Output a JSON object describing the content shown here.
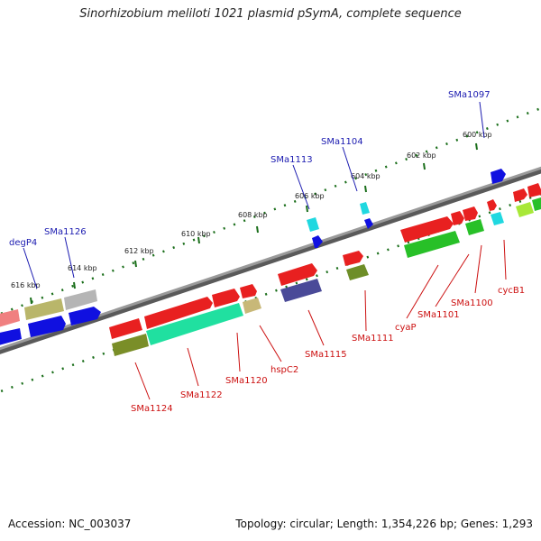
{
  "title": "Sinorhizobium meliloti 1021 plasmid pSymA, complete sequence",
  "footer": {
    "accession": "Accession: NC_003037",
    "summary": "Topology: circular; Length: 1,354,226 bp; Genes: 1,293"
  },
  "ticks": [
    "600 kbp",
    "602 kbp",
    "604 kbp",
    "606 kbp",
    "608 kbp",
    "610 kbp",
    "612 kbp",
    "614 kbp",
    "616 kbp"
  ],
  "forward_labels": [
    "SMa1097",
    "SMa1104",
    "SMa1113",
    "SMa1126",
    "degP4"
  ],
  "reverse_labels": [
    "cycB1",
    "SMa1100",
    "SMa1101",
    "cyaP",
    "SMa1111",
    "SMa1115",
    "hspC2",
    "SMa1120",
    "SMa1122",
    "SMa1124"
  ],
  "colors": {
    "forward_label": "#1a1ab0",
    "reverse_label": "#cc1010",
    "tick": "#1a6e1a",
    "backbone": "#7a7a7a"
  }
}
